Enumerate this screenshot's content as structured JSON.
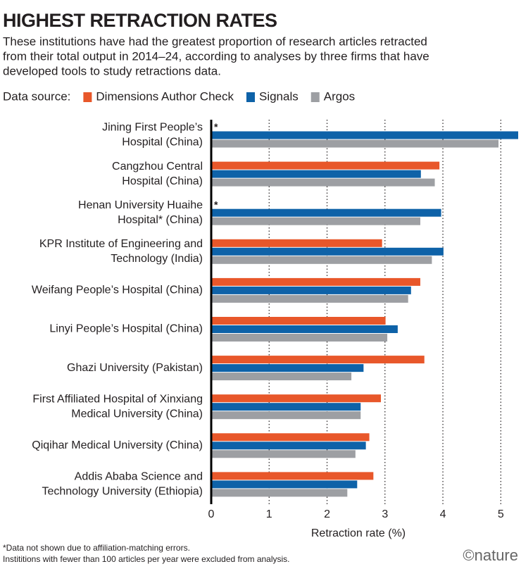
{
  "chart_data": {
    "type": "grouped_hbar",
    "title": "HIGHEST RETRACTION RATES",
    "subtitle": [
      "These institutions have had the greatest proportion of research articles retracted",
      "from their total output in 2014–24, according to analyses by three firms that have",
      "developed tools to study retractions data."
    ],
    "legend_title": "Data source:",
    "categories": [
      [
        "Jining First People’s",
        "Hospital (China)"
      ],
      [
        "Cangzhou Central",
        "Hospital (China)"
      ],
      [
        "Henan University Huaihe",
        "Hospital* (China)"
      ],
      [
        "KPR Institute of Engineering and",
        "Technology (India)"
      ],
      [
        "Weifang People’s Hospital (China)"
      ],
      [
        "Linyi People’s Hospital (China)"
      ],
      [
        "Ghazi University (Pakistan)"
      ],
      [
        "First Affiliated Hospital of Xinxiang",
        "Medical University (China)"
      ],
      [
        "Qiqihar Medical University (China)"
      ],
      [
        "Addis Ababa Science and",
        "Technology University (Ethiopia)"
      ]
    ],
    "series": [
      {
        "name": "Dimensions Author Check",
        "color": "#e8572a",
        "values": [
          null,
          3.94,
          null,
          2.95,
          3.61,
          3.01,
          3.68,
          2.93,
          2.73,
          2.8
        ]
      },
      {
        "name": "Signals",
        "color": "#0e62a8",
        "values": [
          5.3,
          3.62,
          3.97,
          4.01,
          3.45,
          3.22,
          2.63,
          2.58,
          2.67,
          2.52
        ]
      },
      {
        "name": "Argos",
        "color": "#9d9fa3",
        "values": [
          4.96,
          3.86,
          3.61,
          3.81,
          3.4,
          3.04,
          2.42,
          2.58,
          2.49,
          2.35
        ]
      }
    ],
    "null_marker": "*",
    "xlabel": "Retraction rate (%)",
    "xlim": [
      0,
      5.3
    ],
    "xticks": [
      0,
      1,
      2,
      3,
      4,
      5
    ],
    "grid": true,
    "footnotes": [
      "*Data not shown due to affiliation-matching errors.",
      "Instititions with fewer than 100 articles per year were excluded from analysis."
    ],
    "logo": "©nature"
  }
}
